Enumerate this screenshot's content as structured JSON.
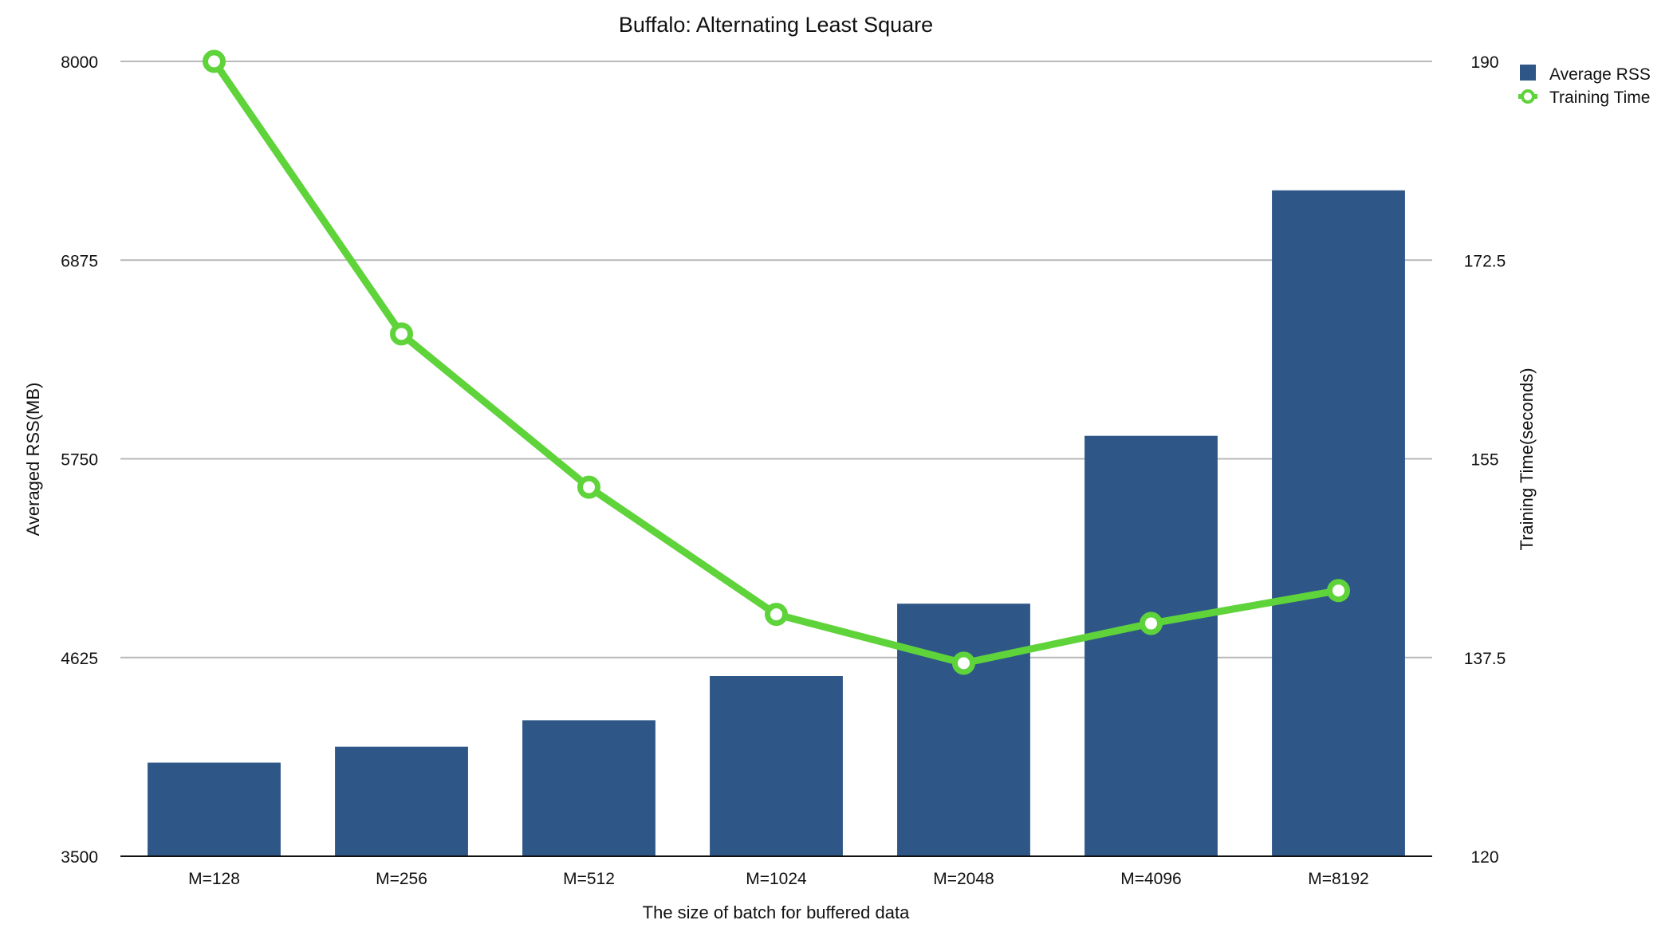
{
  "chart_data": {
    "type": "bar",
    "title": "Buffalo: Alternating Least Square",
    "xlabel": "The size of batch for buffered data",
    "ylabel": "Averaged RSS(MB)",
    "y2label": "Training Time(seconds)",
    "categories": [
      "M=128",
      "M=256",
      "M=512",
      "M=1024",
      "M=2048",
      "M=4096",
      "M=8192"
    ],
    "ylim": [
      3500,
      8000
    ],
    "yticks": [
      3500,
      4625,
      5750,
      6875,
      8000
    ],
    "y2lim": [
      120,
      190
    ],
    "y2ticks": [
      120,
      137.5,
      155,
      172.5,
      190
    ],
    "y2ticklabels": [
      "120",
      "137.5",
      "155",
      "172.5",
      "190"
    ],
    "grid": true,
    "legend_position": "top-right",
    "series": [
      {
        "name": "Average RSS",
        "type": "bar",
        "axis": "left",
        "color": "#2e5788",
        "values": [
          4030,
          4120,
          4270,
          4520,
          4930,
          5880,
          7270
        ]
      },
      {
        "name": "Training Time",
        "type": "line",
        "axis": "right",
        "color": "#5fd33a",
        "values": [
          190,
          166,
          152.5,
          141.3,
          137,
          140.5,
          143.4
        ]
      }
    ]
  }
}
